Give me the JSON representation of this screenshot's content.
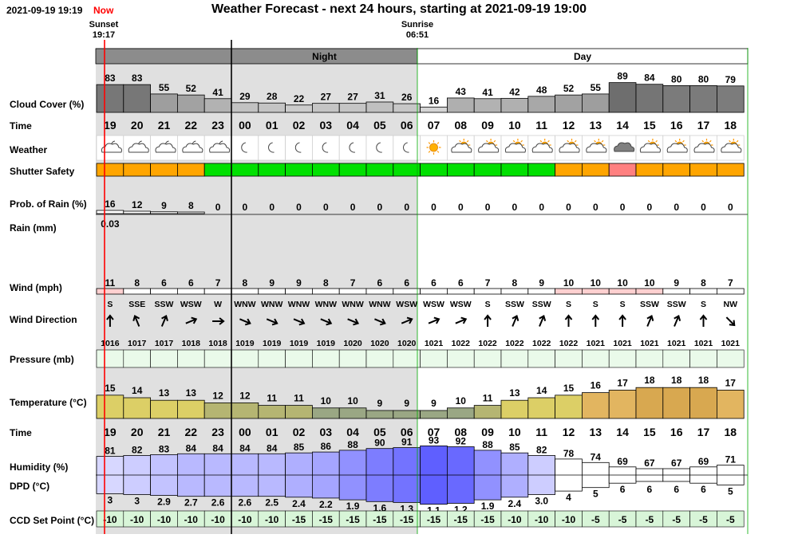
{
  "header": {
    "date_time": "2021-09-19 19:19",
    "now_label": "Now",
    "title": "Weather Forecast - next 24 hours, starting at 2021-09-19 19:00"
  },
  "sun": {
    "sunset_label": "Sunset",
    "sunset_time": "19:17",
    "sunrise_label": "Sunrise",
    "sunrise_time": "06:51"
  },
  "bands": {
    "night_label": "Night",
    "day_label": "Day"
  },
  "row_labels": {
    "cloud": "Cloud Cover (%)",
    "time": "Time",
    "weather": "Weather",
    "shutter": "Shutter Safety",
    "prob_rain": "Prob. of Rain (%)",
    "rain": "Rain (mm)",
    "wind": "Wind (mph)",
    "wind_dir": "Wind Direction",
    "pressure": "Pressure (mb)",
    "temperature": "Temperature (°C)",
    "time2": "Time",
    "humidity": "Humidity (%)",
    "dpd": "DPD (°C)",
    "ccd": "CCD Set Point (°C)"
  },
  "hours": [
    "19",
    "20",
    "21",
    "22",
    "23",
    "00",
    "01",
    "02",
    "03",
    "04",
    "05",
    "06",
    "07",
    "08",
    "09",
    "10",
    "11",
    "12",
    "13",
    "14",
    "15",
    "16",
    "17",
    "18"
  ],
  "cloud_cover": [
    83,
    83,
    55,
    52,
    41,
    29,
    28,
    22,
    27,
    27,
    31,
    26,
    16,
    43,
    41,
    42,
    48,
    52,
    55,
    89,
    84,
    80,
    80,
    79
  ],
  "weather_icons": [
    "partly-cloudy-night-icon",
    "partly-cloudy-night-icon",
    "partly-cloudy-night-icon",
    "partly-cloudy-night-icon",
    "partly-cloudy-night-icon",
    "moon-icon",
    "moon-icon",
    "moon-icon",
    "moon-icon",
    "moon-icon",
    "moon-icon",
    "moon-icon",
    "sun-icon",
    "partly-cloudy-icon",
    "partly-cloudy-icon",
    "partly-cloudy-icon",
    "partly-cloudy-icon",
    "partly-cloudy-icon",
    "partly-cloudy-icon",
    "cloud-icon",
    "partly-cloudy-icon",
    "partly-cloudy-icon",
    "partly-cloudy-icon",
    "partly-cloudy-icon"
  ],
  "shutter_safety": [
    "orange",
    "orange",
    "orange",
    "orange",
    "green",
    "green",
    "green",
    "green",
    "green",
    "green",
    "green",
    "green",
    "green",
    "green",
    "green",
    "green",
    "green",
    "orange",
    "orange",
    "red",
    "orange",
    "orange",
    "orange",
    "orange"
  ],
  "prob_rain": [
    16,
    12,
    9,
    8,
    0,
    0,
    0,
    0,
    0,
    0,
    0,
    0,
    0,
    0,
    0,
    0,
    0,
    0,
    0,
    0,
    0,
    0,
    0,
    0
  ],
  "rain_mm": [
    "0.03",
    "",
    "",
    "",
    "",
    "",
    "",
    "",
    "",
    "",
    "",
    "",
    "",
    "",
    "",
    "",
    "",
    "",
    "",
    "",
    "",
    "",
    "",
    ""
  ],
  "wind_mph": [
    11,
    8,
    6,
    6,
    7,
    8,
    9,
    9,
    8,
    7,
    6,
    6,
    6,
    6,
    7,
    8,
    9,
    10,
    10,
    10,
    10,
    9,
    8,
    7
  ],
  "wind_dir": [
    "S",
    "SSE",
    "SSW",
    "WSW",
    "W",
    "WNW",
    "WNW",
    "WNW",
    "WNW",
    "WNW",
    "WNW",
    "WSW",
    "WSW",
    "WSW",
    "S",
    "SSW",
    "SSW",
    "S",
    "S",
    "S",
    "SSW",
    "SSW",
    "S",
    "NW"
  ],
  "pressure": [
    1016,
    1017,
    1017,
    1018,
    1018,
    1019,
    1019,
    1019,
    1019,
    1020,
    1020,
    1020,
    1021,
    1022,
    1022,
    1022,
    1022,
    1022,
    1021,
    1021,
    1021,
    1021,
    1021,
    1021
  ],
  "temperature": [
    15,
    14,
    13,
    13,
    12,
    12,
    11,
    11,
    10,
    10,
    9,
    9,
    9,
    10,
    11,
    13,
    14,
    15,
    16,
    17,
    18,
    18,
    18,
    17
  ],
  "humidity": [
    81,
    82,
    83,
    84,
    84,
    84,
    84,
    85,
    86,
    88,
    90,
    91,
    93,
    92,
    88,
    85,
    82,
    78,
    74,
    69,
    67,
    67,
    69,
    71
  ],
  "dpd": [
    "3",
    "3",
    "2.9",
    "2.7",
    "2.6",
    "2.6",
    "2.5",
    "2.4",
    "2.2",
    "1.9",
    "1.6",
    "1.3",
    "1.1",
    "1.2",
    "1.9",
    "2.4",
    "3.0",
    "4",
    "5",
    "6",
    "6",
    "6",
    "6",
    "5"
  ],
  "ccd_set_point": [
    -10,
    -10,
    -10,
    -10,
    -10,
    -10,
    -10,
    -15,
    -15,
    -15,
    -15,
    -15,
    -15,
    -15,
    -15,
    -10,
    -10,
    -10,
    -5,
    -5,
    -5,
    -5,
    -5,
    -5
  ],
  "colors": {
    "night_band": "#8c8c8c",
    "night_bg": "#e0e0e0",
    "now_line": "#ff0000",
    "shutter_orange": "#ffa500",
    "shutter_green": "#00e000",
    "shutter_red": "#ff8080",
    "ccd_bg": "#d8f5d8",
    "pressure_bg": "#eafaea"
  }
}
